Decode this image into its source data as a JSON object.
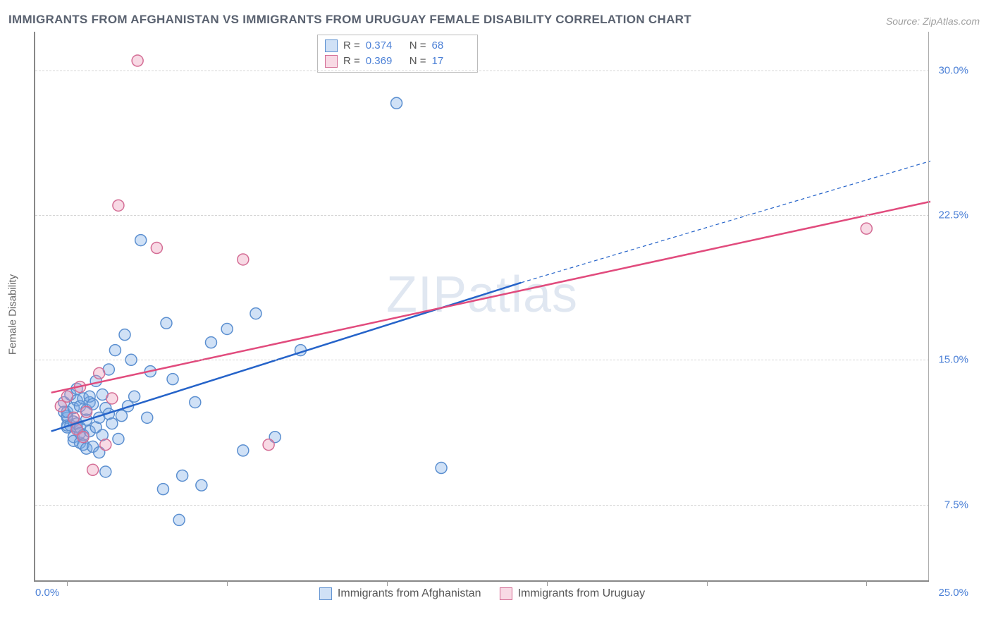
{
  "title": "IMMIGRANTS FROM AFGHANISTAN VS IMMIGRANTS FROM URUGUAY FEMALE DISABILITY CORRELATION CHART",
  "source": "Source: ZipAtlas.com",
  "watermark": "ZIPatlas",
  "ylabel": "Female Disability",
  "chart": {
    "type": "scatter",
    "background_color": "#ffffff",
    "grid_color": "#d5d5d5",
    "axis_color": "#888888",
    "xlim": [
      -1.0,
      27.0
    ],
    "ylim": [
      3.5,
      32.0
    ],
    "xticks": [
      0.0,
      5.0,
      10.0,
      15.0,
      20.0,
      25.0
    ],
    "xtick_labels_shown": {
      "first": "0.0%",
      "last": "25.0%"
    },
    "yticks": [
      7.5,
      15.0,
      22.5,
      30.0
    ],
    "ytick_labels": [
      "7.5%",
      "15.0%",
      "22.5%",
      "30.0%"
    ],
    "marker_radius": 8,
    "marker_stroke_width": 1.5,
    "line_width_solid": 2.5,
    "line_width_dash": 1.2,
    "dash_pattern": "5,4",
    "title_fontsize": 17,
    "label_fontsize": 15,
    "tick_color": "#4a7fd6"
  },
  "series": [
    {
      "key": "afghanistan",
      "label": "Immigrants from Afghanistan",
      "color_fill": "rgba(120,170,230,0.35)",
      "color_stroke": "#5b8fd0",
      "line_color": "#2563c9",
      "r": "0.374",
      "n": "68",
      "regression_solid": {
        "x1": -0.5,
        "y1": 11.3,
        "x2": 14.2,
        "y2": 19.0
      },
      "regression_dash": {
        "x1": 14.2,
        "y1": 19.0,
        "x2": 27.0,
        "y2": 25.3
      },
      "points": [
        [
          -0.1,
          12.8
        ],
        [
          -0.1,
          12.3
        ],
        [
          0.0,
          11.5
        ],
        [
          0.0,
          12.0
        ],
        [
          0.0,
          11.6
        ],
        [
          0.0,
          12.1
        ],
        [
          0.0,
          12.3
        ],
        [
          0.1,
          13.2
        ],
        [
          0.1,
          11.6
        ],
        [
          0.2,
          11.0
        ],
        [
          0.2,
          12.5
        ],
        [
          0.2,
          11.8
        ],
        [
          0.2,
          10.8
        ],
        [
          0.3,
          12.9
        ],
        [
          0.3,
          11.5
        ],
        [
          0.3,
          13.5
        ],
        [
          0.3,
          11.7
        ],
        [
          0.4,
          11.5
        ],
        [
          0.4,
          12.6
        ],
        [
          0.4,
          10.7
        ],
        [
          0.4,
          11.2
        ],
        [
          0.5,
          13.0
        ],
        [
          0.5,
          11.1
        ],
        [
          0.5,
          10.6
        ],
        [
          0.6,
          10.4
        ],
        [
          0.6,
          12.4
        ],
        [
          0.6,
          11.9
        ],
        [
          0.7,
          12.8
        ],
        [
          0.7,
          11.3
        ],
        [
          0.7,
          13.1
        ],
        [
          0.8,
          10.5
        ],
        [
          0.8,
          12.7
        ],
        [
          0.9,
          11.5
        ],
        [
          0.9,
          13.9
        ],
        [
          1.0,
          12.0
        ],
        [
          1.0,
          10.2
        ],
        [
          1.1,
          11.1
        ],
        [
          1.1,
          13.2
        ],
        [
          1.2,
          12.5
        ],
        [
          1.2,
          9.2
        ],
        [
          1.3,
          14.5
        ],
        [
          1.3,
          12.2
        ],
        [
          1.4,
          11.7
        ],
        [
          1.5,
          15.5
        ],
        [
          1.6,
          10.9
        ],
        [
          1.7,
          12.1
        ],
        [
          1.8,
          16.3
        ],
        [
          1.9,
          12.6
        ],
        [
          2.0,
          15.0
        ],
        [
          2.1,
          13.1
        ],
        [
          2.3,
          21.2
        ],
        [
          2.5,
          12.0
        ],
        [
          2.6,
          14.4
        ],
        [
          3.0,
          8.3
        ],
        [
          3.1,
          16.9
        ],
        [
          3.3,
          14.0
        ],
        [
          3.5,
          6.7
        ],
        [
          3.6,
          9.0
        ],
        [
          4.0,
          12.8
        ],
        [
          4.2,
          8.5
        ],
        [
          4.5,
          15.9
        ],
        [
          5.0,
          16.6
        ],
        [
          5.5,
          10.3
        ],
        [
          5.9,
          17.4
        ],
        [
          6.5,
          11.0
        ],
        [
          7.3,
          15.5
        ],
        [
          10.3,
          28.3
        ],
        [
          11.7,
          9.4
        ]
      ]
    },
    {
      "key": "uruguay",
      "label": "Immigrants from Uruguay",
      "color_fill": "rgba(236,150,180,0.35)",
      "color_stroke": "#d46d95",
      "line_color": "#e14b7d",
      "r": "0.369",
      "n": "17",
      "regression_solid": {
        "x1": -0.5,
        "y1": 13.3,
        "x2": 27.0,
        "y2": 23.2
      },
      "regression_dash": null,
      "points": [
        [
          -0.2,
          12.6
        ],
        [
          0.0,
          13.1
        ],
        [
          0.2,
          12.0
        ],
        [
          0.3,
          11.4
        ],
        [
          0.4,
          13.6
        ],
        [
          0.5,
          11.0
        ],
        [
          0.6,
          12.3
        ],
        [
          0.8,
          9.3
        ],
        [
          1.0,
          14.3
        ],
        [
          1.2,
          10.6
        ],
        [
          1.4,
          13.0
        ],
        [
          1.6,
          23.0
        ],
        [
          2.2,
          30.5
        ],
        [
          2.8,
          20.8
        ],
        [
          5.5,
          20.2
        ],
        [
          6.3,
          10.6
        ],
        [
          25.0,
          21.8
        ]
      ]
    }
  ],
  "legend_top": {
    "r_label": "R =",
    "n_label": "N ="
  }
}
